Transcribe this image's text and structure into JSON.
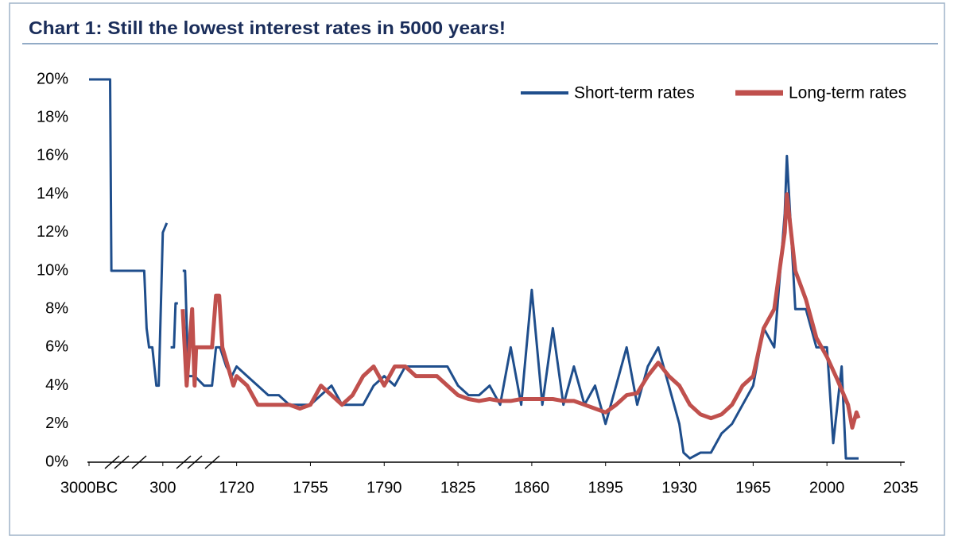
{
  "chart_data": {
    "type": "line",
    "title": "Chart 1:  Still the lowest interest rates in 5000 years!",
    "ylim": [
      0,
      20
    ],
    "yticks": [
      {
        "value": 0,
        "label": "0%"
      },
      {
        "value": 2,
        "label": "2%"
      },
      {
        "value": 4,
        "label": "4%"
      },
      {
        "value": 6,
        "label": "6%"
      },
      {
        "value": 8,
        "label": "8%"
      },
      {
        "value": 10,
        "label": "10%"
      },
      {
        "value": 12,
        "label": "12%"
      },
      {
        "value": 14,
        "label": "14%"
      },
      {
        "value": 16,
        "label": "16%"
      },
      {
        "value": 18,
        "label": "18%"
      },
      {
        "value": 20,
        "label": "20%"
      }
    ],
    "xticks": [
      {
        "value": -3000,
        "label": "3000BC"
      },
      300,
      1720,
      1755,
      1790,
      1825,
      1860,
      1895,
      1930,
      1965,
      2000,
      2035
    ],
    "legend": "top-right",
    "series": [
      {
        "name": "Short-term rates",
        "color": "#1f4e8c",
        "x": [
          -3000,
          -2057,
          -2000,
          -534,
          -425,
          -317,
          -171,
          10,
          118,
          300,
          376,
          null,
          450,
          514,
          545,
          590,
          null,
          682,
          728,
          789,
          911,
          1094,
          1247,
          1323,
          1400,
          1521,
          1628,
          1720,
          1725,
          1730,
          1735,
          1740,
          1745,
          1750,
          1755,
          1760,
          1765,
          1770,
          1775,
          1780,
          1785,
          1790,
          1795,
          1800,
          1805,
          1810,
          1815,
          1820,
          1825,
          1830,
          1835,
          1840,
          1845,
          1850,
          1855,
          1860,
          1865,
          1870,
          1875,
          1880,
          1885,
          1890,
          1895,
          1900,
          1905,
          1910,
          1915,
          1920,
          1925,
          1930,
          1932,
          1935,
          1940,
          1945,
          1950,
          1955,
          1960,
          1965,
          1970,
          1975,
          1980,
          1981,
          1985,
          1990,
          1995,
          2000,
          2003,
          2005,
          2007,
          2009,
          2015
        ],
        "values": [
          20,
          20,
          10,
          10,
          7,
          6,
          6,
          4,
          4,
          12,
          12.5,
          null,
          6,
          6,
          8.3,
          8.3,
          null,
          10,
          10,
          4.5,
          4.5,
          4,
          4,
          6,
          6,
          5,
          4.5,
          5,
          4.5,
          4,
          3.5,
          3.5,
          3,
          3,
          3,
          3.5,
          4,
          3,
          3,
          3,
          4,
          4.5,
          4,
          5,
          5,
          5,
          5,
          5,
          4,
          3.5,
          3.5,
          4,
          3,
          6,
          3,
          9,
          3,
          7,
          3,
          5,
          3,
          4,
          2,
          4,
          6,
          3,
          5,
          6,
          4,
          2,
          0.5,
          0.2,
          0.5,
          0.5,
          1.5,
          2,
          3,
          4,
          7,
          6,
          13,
          16,
          8,
          8,
          6,
          6,
          1,
          3,
          5,
          0.2,
          0.2
        ]
      },
      {
        "name": "Long-term rates",
        "color": "#c0504d",
        "x": [
          682,
          758,
          865,
          911,
          941,
          1247,
          1323,
          1384,
          1445,
          1552,
          1659,
          1720,
          1725,
          1730,
          1735,
          1740,
          1745,
          1750,
          1755,
          1760,
          1765,
          1770,
          1775,
          1780,
          1785,
          1790,
          1795,
          1800,
          1805,
          1810,
          1815,
          1820,
          1825,
          1830,
          1835,
          1840,
          1845,
          1850,
          1855,
          1860,
          1865,
          1870,
          1875,
          1880,
          1885,
          1890,
          1895,
          1900,
          1905,
          1910,
          1915,
          1920,
          1925,
          1930,
          1935,
          1940,
          1945,
          1950,
          1955,
          1960,
          1965,
          1970,
          1975,
          1980,
          1981,
          1985,
          1990,
          1995,
          2000,
          2005,
          2010,
          2012,
          2014,
          2015
        ],
        "values": [
          8,
          4,
          8,
          4,
          6,
          6,
          8.7,
          8.7,
          6,
          5,
          4,
          4.5,
          4,
          3,
          3,
          3,
          3,
          2.8,
          3,
          4,
          3.5,
          3,
          3.5,
          4.5,
          5,
          4,
          5,
          5,
          4.5,
          4.5,
          4.5,
          4,
          3.5,
          3.3,
          3.2,
          3.3,
          3.2,
          3.2,
          3.3,
          3.3,
          3.3,
          3.3,
          3.2,
          3.2,
          3,
          2.8,
          2.6,
          3,
          3.5,
          3.6,
          4.5,
          5.2,
          4.5,
          4,
          3,
          2.5,
          2.3,
          2.5,
          3,
          4,
          4.5,
          7,
          8,
          12,
          14,
          10,
          8.5,
          6.5,
          5.5,
          4.3,
          3,
          1.8,
          2.6,
          2.3
        ]
      }
    ]
  }
}
